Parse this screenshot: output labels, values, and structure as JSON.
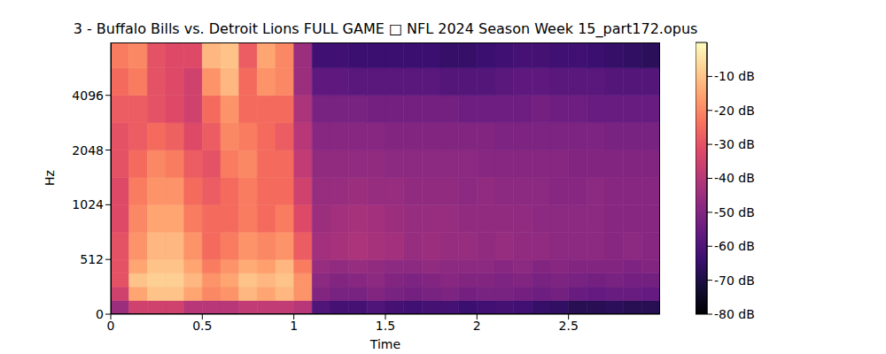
{
  "chart_data": {
    "type": "heatmap",
    "title": "3 - Buffalo Bills vs. Detroit Lions FULL GAME □ NFL 2024 Season Week 15_part172.opus",
    "x_label": "Time",
    "y_label": "Hz",
    "xlim": [
      0,
      3.0
    ],
    "xticks": [
      0,
      0.5,
      1,
      1.5,
      2,
      2.5
    ],
    "ylim": [
      0,
      8000
    ],
    "yticks": [
      0,
      512,
      1024,
      2048,
      4096
    ],
    "log": "y",
    "x_bins": [
      0,
      0.1,
      0.2,
      0.3,
      0.4,
      0.5,
      0.6,
      0.7,
      0.8,
      0.9,
      1.0,
      1.1,
      1.2,
      1.3,
      1.4,
      1.5,
      1.6,
      1.7,
      1.8,
      1.9,
      2.0,
      2.1,
      2.2,
      2.3,
      2.4,
      2.5,
      2.6,
      2.7,
      2.8,
      2.9,
      3.0
    ],
    "y_bins": [
      0,
      128,
      256,
      384,
      512,
      724,
      1024,
      1448,
      2048,
      2896,
      4096,
      5793,
      8000
    ],
    "cells": [
      [
        -45,
        -35,
        -35,
        -35,
        -40,
        -40,
        -40,
        -38,
        -38,
        -38,
        -40,
        -60,
        -62,
        -62,
        -60,
        -62,
        -63,
        -62,
        -62,
        -64,
        -63,
        -62,
        -63,
        -65,
        -66,
        -68,
        -68,
        -67,
        -68,
        -68
      ],
      [
        -35,
        -15,
        -10,
        -10,
        -15,
        -20,
        -18,
        -12,
        -15,
        -12,
        -18,
        -50,
        -52,
        -52,
        -50,
        -52,
        -53,
        -52,
        -51,
        -53,
        -52,
        -52,
        -53,
        -54,
        -53,
        -55,
        -56,
        -55,
        -55,
        -56
      ],
      [
        -30,
        -10,
        -8,
        -8,
        -12,
        -18,
        -15,
        -10,
        -12,
        -10,
        -18,
        -48,
        -50,
        -49,
        -48,
        -50,
        -51,
        -50,
        -49,
        -50,
        -50,
        -51,
        -50,
        -52,
        -51,
        -52,
        -53,
        -52,
        -53,
        -53
      ],
      [
        -30,
        -15,
        -10,
        -10,
        -15,
        -22,
        -18,
        -14,
        -16,
        -12,
        -22,
        -46,
        -47,
        -46,
        -47,
        -48,
        -48,
        -47,
        -48,
        -48,
        -48,
        -49,
        -48,
        -50,
        -49,
        -50,
        -50,
        -50,
        -51,
        -50
      ],
      [
        -30,
        -18,
        -12,
        -12,
        -18,
        -25,
        -22,
        -18,
        -20,
        -18,
        -28,
        -44,
        -43,
        -42,
        -43,
        -44,
        -46,
        -45,
        -46,
        -46,
        -47,
        -46,
        -47,
        -47,
        -48,
        -48,
        -48,
        -49,
        -48,
        -49
      ],
      [
        -32,
        -20,
        -15,
        -15,
        -22,
        -25,
        -25,
        -22,
        -25,
        -22,
        -32,
        -45,
        -44,
        -43,
        -44,
        -45,
        -46,
        -46,
        -46,
        -47,
        -47,
        -47,
        -47,
        -48,
        -48,
        -48,
        -48,
        -49,
        -49,
        -49
      ],
      [
        -32,
        -22,
        -18,
        -18,
        -25,
        -28,
        -25,
        -22,
        -25,
        -25,
        -35,
        -46,
        -46,
        -45,
        -46,
        -46,
        -47,
        -47,
        -47,
        -48,
        -47,
        -48,
        -48,
        -48,
        -49,
        -49,
        -48,
        -49,
        -49,
        -49
      ],
      [
        -30,
        -25,
        -20,
        -22,
        -28,
        -30,
        -22,
        -20,
        -25,
        -25,
        -38,
        -47,
        -47,
        -47,
        -47,
        -48,
        -48,
        -48,
        -48,
        -48,
        -49,
        -49,
        -49,
        -49,
        -49,
        -50,
        -50,
        -50,
        -50,
        -50
      ],
      [
        -30,
        -28,
        -25,
        -27,
        -32,
        -28,
        -20,
        -22,
        -25,
        -28,
        -40,
        -49,
        -49,
        -49,
        -49,
        -50,
        -50,
        -50,
        -50,
        -50,
        -50,
        -51,
        -51,
        -51,
        -51,
        -51,
        -51,
        -52,
        -52,
        -52
      ],
      [
        -28,
        -28,
        -30,
        -32,
        -35,
        -25,
        -18,
        -25,
        -25,
        -25,
        -42,
        -52,
        -52,
        -52,
        -53,
        -53,
        -53,
        -53,
        -53,
        -54,
        -54,
        -54,
        -54,
        -53,
        -54,
        -54,
        -55,
        -55,
        -55,
        -55
      ],
      [
        -25,
        -22,
        -30,
        -32,
        -35,
        -18,
        -12,
        -25,
        -18,
        -20,
        -45,
        -57,
        -57,
        -58,
        -58,
        -58,
        -58,
        -58,
        -59,
        -59,
        -59,
        -58,
        -57,
        -57,
        -58,
        -58,
        -58,
        -59,
        -59,
        -59
      ],
      [
        -22,
        -20,
        -30,
        -32,
        -32,
        -12,
        -10,
        -28,
        -15,
        -20,
        -45,
        -63,
        -63,
        -64,
        -64,
        -64,
        -64,
        -64,
        -65,
        -65,
        -64,
        -63,
        -62,
        -62,
        -63,
        -63,
        -64,
        -65,
        -66,
        -67
      ]
    ],
    "colorbar": {
      "range": [
        -80,
        0
      ],
      "ticks": [
        {
          "value": -10,
          "label": "-10 dB"
        },
        {
          "value": -20,
          "label": "-20 dB"
        },
        {
          "value": -30,
          "label": "-30 dB"
        },
        {
          "value": -40,
          "label": "-40 dB"
        },
        {
          "value": -50,
          "label": "-50 dB"
        },
        {
          "value": -60,
          "label": "-60 dB"
        },
        {
          "value": -70,
          "label": "-70 dB"
        },
        {
          "value": -80,
          "label": "-80 dB"
        }
      ]
    }
  }
}
